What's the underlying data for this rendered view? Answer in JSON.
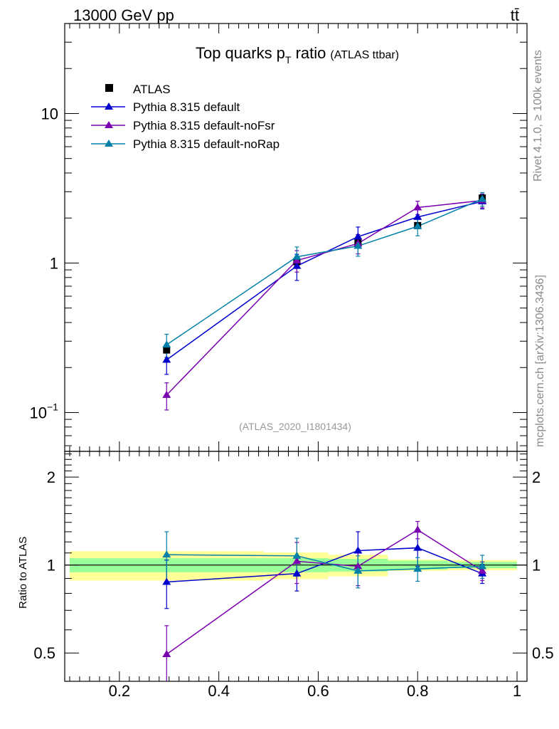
{
  "header": {
    "energy_label": "13000 GeV pp",
    "process_label": "tt̄",
    "rivet_label": "Rivet 4.1.0, ≥ 100k events",
    "mcplots_label": "mcplots.cern.ch [arXiv:1306.3436]"
  },
  "chart_data": [
    {
      "type": "line",
      "panel": "main",
      "title_main": "Top quarks p",
      "title_sub": "T",
      "title_ratio": " ratio",
      "title_detail": "(ATLAS ttbar)",
      "analysis_label": "(ATLAS_2020_I1801434)",
      "xlim": [
        0.09,
        1.02
      ],
      "ylim": [
        0.055,
        40
      ],
      "yscale": "log",
      "yticks": [
        {
          "value": 10,
          "label": "10"
        },
        {
          "value": 1,
          "label": "1"
        },
        {
          "value": 0.1,
          "label": "10",
          "exp": "−1"
        }
      ],
      "x": [
        0.295,
        0.557,
        0.68,
        0.8,
        0.93
      ],
      "data": {
        "name": "ATLAS",
        "color": "#000000",
        "values": [
          0.262,
          1.02,
          1.36,
          1.78,
          2.72
        ]
      },
      "series": [
        {
          "name": "Pythia 8.315 default",
          "color": "#0000cc",
          "values": [
            0.225,
            0.955,
            1.5,
            2.03,
            2.58
          ],
          "err": [
            0.045,
            0.19,
            0.24,
            0.28,
            0.28
          ]
        },
        {
          "name": "Pythia 8.315 default-noFsr",
          "color": "#7a00b0",
          "values": [
            0.131,
            1.04,
            1.35,
            2.35,
            2.62
          ],
          "err": [
            0.027,
            0.17,
            0.2,
            0.24,
            0.28
          ]
        },
        {
          "name": "Pythia 8.315 default-noRap",
          "color": "#0080a8",
          "values": [
            0.284,
            1.1,
            1.3,
            1.76,
            2.68
          ],
          "err": [
            0.05,
            0.18,
            0.19,
            0.24,
            0.28
          ]
        }
      ]
    },
    {
      "type": "line",
      "panel": "ratio",
      "ylabel": "Ratio to ATLAS",
      "xlim": [
        0.09,
        1.02
      ],
      "ylim": [
        0.4,
        2.45
      ],
      "yscale": "log",
      "yticks": [
        {
          "value": 2,
          "label": "2"
        },
        {
          "value": 1,
          "label": "1"
        },
        {
          "value": 0.5,
          "label": "0.5"
        }
      ],
      "xticks": [
        {
          "value": 0.2,
          "label": "0.2"
        },
        {
          "value": 0.4,
          "label": "0.4"
        },
        {
          "value": 0.6,
          "label": "0.6"
        },
        {
          "value": 0.8,
          "label": "0.8"
        },
        {
          "value": 1,
          "label": "1"
        }
      ],
      "bins": [
        {
          "lo": 0.1,
          "hi": 0.49,
          "stat": 0.055,
          "total": 0.115
        },
        {
          "lo": 0.49,
          "hi": 0.62,
          "stat": 0.055,
          "total": 0.105
        },
        {
          "lo": 0.62,
          "hi": 0.74,
          "stat": 0.05,
          "total": 0.085
        },
        {
          "lo": 0.74,
          "hi": 0.86,
          "stat": 0.035,
          "total": 0.045
        },
        {
          "lo": 0.86,
          "hi": 1.0,
          "stat": 0.025,
          "total": 0.04
        }
      ],
      "x": [
        0.295,
        0.557,
        0.68,
        0.8,
        0.93
      ],
      "series": [
        {
          "name": "Pythia 8.315 default",
          "color": "#0000cc",
          "values": [
            0.875,
            0.935,
            1.12,
            1.145,
            0.935
          ],
          "err": [
            0.165,
            0.12,
            0.18,
            0.155,
            0.07
          ]
        },
        {
          "name": "Pythia 8.315 default-noFsr",
          "color": "#7a00b0",
          "values": [
            0.495,
            1.03,
            0.99,
            1.32,
            0.955
          ],
          "err": [
            0.125,
            0.165,
            0.14,
            0.09,
            0.07
          ]
        },
        {
          "name": "Pythia 8.315 default-noRap",
          "color": "#0080a8",
          "values": [
            1.085,
            1.075,
            0.955,
            0.97,
            0.99
          ],
          "err": [
            0.215,
            0.16,
            0.12,
            0.09,
            0.09
          ]
        }
      ]
    }
  ]
}
